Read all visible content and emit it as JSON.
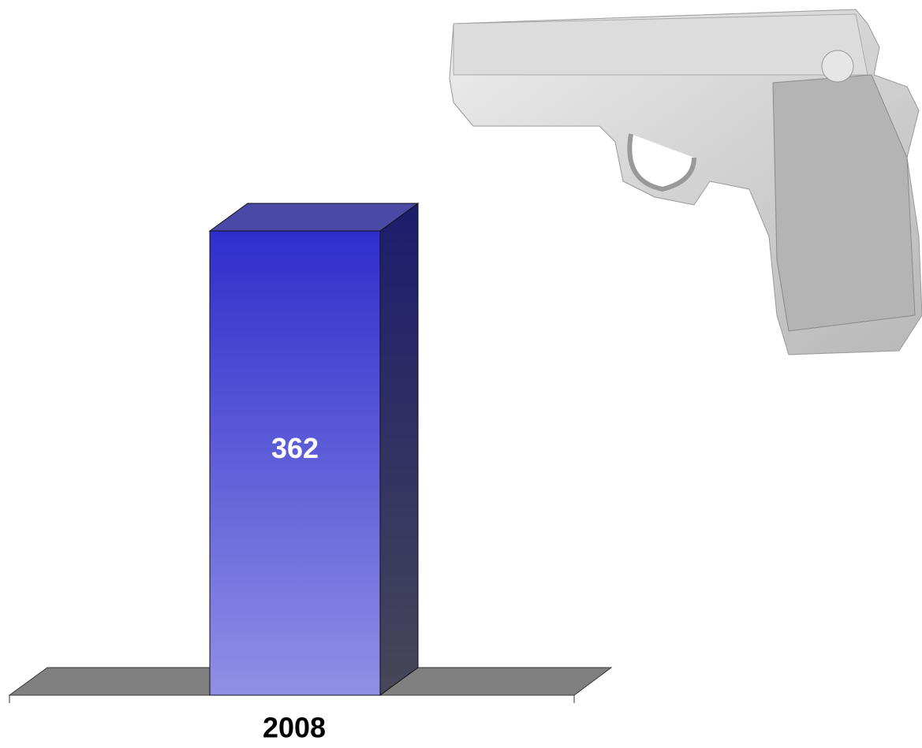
{
  "chart_data": {
    "type": "bar3d",
    "categories": [
      "2008"
    ],
    "values": [
      362
    ],
    "color": "#3333cc"
  }
}
